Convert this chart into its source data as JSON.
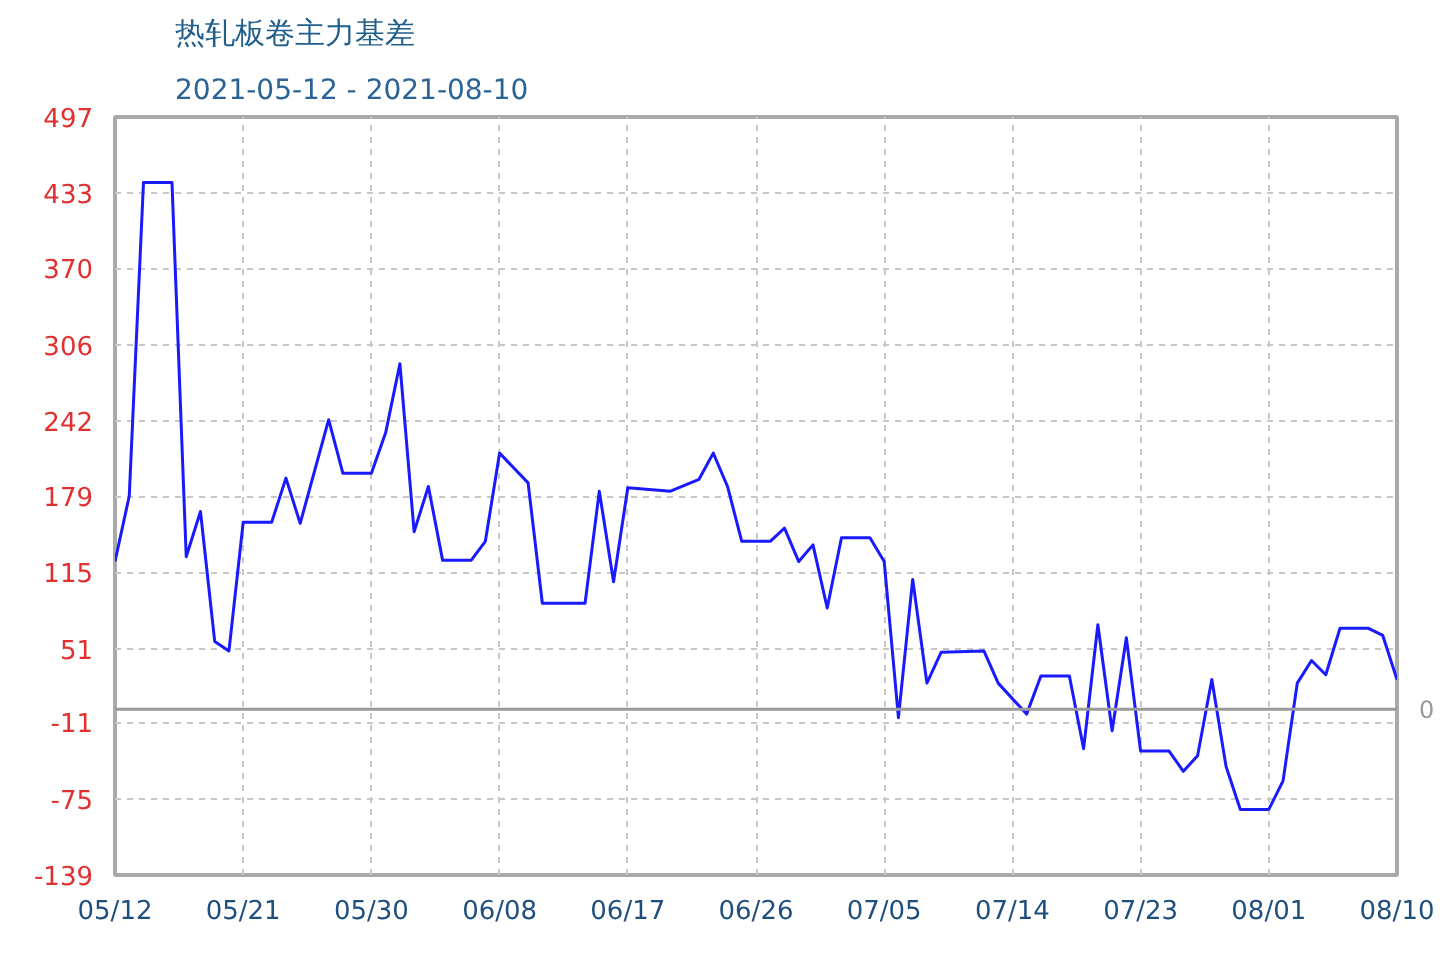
{
  "chart_data": {
    "type": "line",
    "title": "热轧板卷主力基差",
    "subtitle": "2021-05-12 - 2021-08-10",
    "x": [
      "2021-05-12",
      "2021-05-13",
      "2021-05-14",
      "2021-05-16",
      "2021-05-17",
      "2021-05-18",
      "2021-05-19",
      "2021-05-20",
      "2021-05-21",
      "2021-05-23",
      "2021-05-24",
      "2021-05-25",
      "2021-05-27",
      "2021-05-28",
      "2021-05-30",
      "2021-05-31",
      "2021-06-01",
      "2021-06-02",
      "2021-06-03",
      "2021-06-04",
      "2021-06-06",
      "2021-06-07",
      "2021-06-08",
      "2021-06-10",
      "2021-06-11",
      "2021-06-14",
      "2021-06-15",
      "2021-06-16",
      "2021-06-17",
      "2021-06-20",
      "2021-06-22",
      "2021-06-23",
      "2021-06-24",
      "2021-06-25",
      "2021-06-27",
      "2021-06-28",
      "2021-06-29",
      "2021-06-30",
      "2021-07-01",
      "2021-07-02",
      "2021-07-04",
      "2021-07-05",
      "2021-07-06",
      "2021-07-07",
      "2021-07-08",
      "2021-07-09",
      "2021-07-12",
      "2021-07-13",
      "2021-07-15",
      "2021-07-16",
      "2021-07-18",
      "2021-07-19",
      "2021-07-20",
      "2021-07-21",
      "2021-07-22",
      "2021-07-23",
      "2021-07-25",
      "2021-07-26",
      "2021-07-27",
      "2021-07-28",
      "2021-07-29",
      "2021-07-30",
      "2021-08-01",
      "2021-08-02",
      "2021-08-03",
      "2021-08-04",
      "2021-08-05",
      "2021-08-06",
      "2021-08-08",
      "2021-08-09",
      "2021-08-10"
    ],
    "series": [
      {
        "color": "#1a1aff",
        "values": [
          124,
          179,
          442,
          442,
          128,
          166,
          57,
          49,
          157,
          157,
          194,
          156,
          243,
          198,
          198,
          232,
          290,
          149,
          187,
          125,
          125,
          141,
          215,
          190,
          89,
          89,
          183,
          107,
          186,
          183,
          193,
          215,
          187,
          141,
          141,
          152,
          124,
          138,
          85,
          144,
          144,
          124,
          -7,
          109,
          22,
          48,
          49,
          22,
          -4,
          28,
          28,
          -33,
          71,
          -18,
          60,
          -35,
          -35,
          -52,
          -39,
          25,
          -48,
          -84,
          -84,
          -60,
          22,
          41,
          29,
          68,
          68,
          62,
          25
        ]
      }
    ],
    "xlim": [
      "2021-05-12",
      "2021-08-10"
    ],
    "xticks": [
      {
        "value": "2021-05-12",
        "label": "05/12"
      },
      {
        "value": "2021-05-21",
        "label": "05/21"
      },
      {
        "value": "2021-05-30",
        "label": "05/30"
      },
      {
        "value": "2021-06-08",
        "label": "06/08"
      },
      {
        "value": "2021-06-17",
        "label": "06/17"
      },
      {
        "value": "2021-06-26",
        "label": "06/26"
      },
      {
        "value": "2021-07-05",
        "label": "07/05"
      },
      {
        "value": "2021-07-14",
        "label": "07/14"
      },
      {
        "value": "2021-07-23",
        "label": "07/23"
      },
      {
        "value": "2021-08-01",
        "label": "08/01"
      },
      {
        "value": "2021-08-10",
        "label": "08/10"
      }
    ],
    "ylim": [
      -139,
      497
    ],
    "yticks": [
      -139,
      -75,
      -11,
      51,
      115,
      179,
      242,
      306,
      370,
      433,
      497
    ],
    "ref_lines": [
      {
        "axis": "y",
        "value": 0,
        "label": "0",
        "color": "#999999"
      }
    ],
    "grid": true,
    "marker": "none",
    "line_style": "solid"
  }
}
